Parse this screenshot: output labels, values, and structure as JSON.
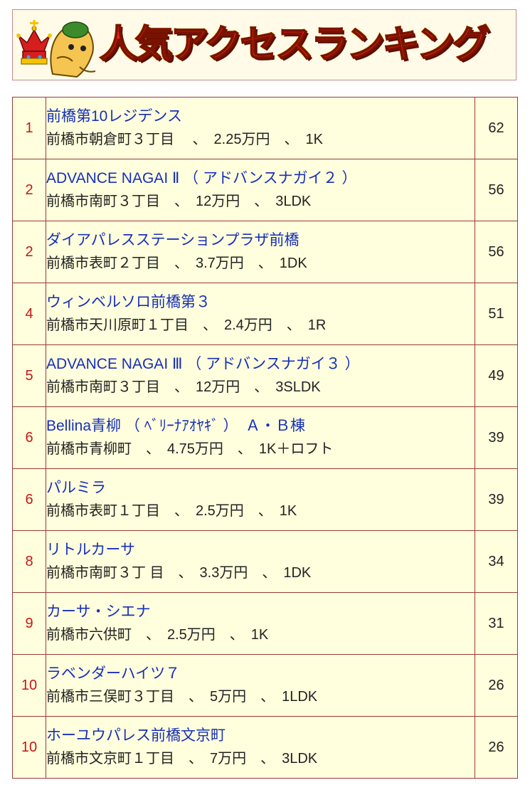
{
  "header": {
    "title": "人気アクセスランキング"
  },
  "colors": {
    "rank_number": "#c51616",
    "property_name": "#1730b8",
    "cell_background": "#ffffdd",
    "border": "#9a3a3a",
    "title_fill": "#e8261a"
  },
  "icons": {
    "mascot": "crowned-horse-mascot-icon"
  },
  "ranking": {
    "rows": [
      {
        "rank": "1",
        "name": "前橋第10レジデンス",
        "detail": "前橋市朝倉町３丁目　 、　2.25万円　、　1K",
        "count": "62"
      },
      {
        "rank": "2",
        "name": "ADVANCE NAGAI Ⅱ （ アドバンスナガイ２ ）",
        "detail": "前橋市南町３丁目　、　12万円　、　3LDK",
        "count": "56"
      },
      {
        "rank": "2",
        "name": "ダイアパレスステーションプラザ前橋",
        "detail": "前橋市表町２丁目　、　3.7万円　、　1DK",
        "count": "56"
      },
      {
        "rank": "4",
        "name": "ウィンベルソロ前橋第３",
        "detail": "前橋市天川原町１丁目　、　2.4万円　、　1R",
        "count": "51"
      },
      {
        "rank": "5",
        "name": "ADVANCE NAGAI Ⅲ （ アドバンスナガイ３ ）",
        "detail": "前橋市南町３丁目　、　12万円　、　3SLDK",
        "count": "49"
      },
      {
        "rank": "6",
        "name": "Bellina青柳 （ ﾍﾞﾘｰﾅｱｵﾔｷﾞ ）　Ａ・Ｂ棟",
        "detail": "前橋市青柳町　、　4.75万円　、　1K＋ロフト",
        "count": "39"
      },
      {
        "rank": "6",
        "name": "パルミラ",
        "detail": "前橋市表町１丁目　、　2.5万円　、　1K",
        "count": "39"
      },
      {
        "rank": "8",
        "name": "リトルカーサ",
        "detail": "前橋市南町３丁 目　、　3.3万円　、　1DK",
        "count": "34"
      },
      {
        "rank": "9",
        "name": "カーサ・シエナ",
        "detail": "前橋市六供町　、　2.5万円　、　1K",
        "count": "31"
      },
      {
        "rank": "10",
        "name": "ラベンダーハイツ７",
        "detail": "前橋市三俣町３丁目　、　5万円　、　1LDK",
        "count": "26"
      },
      {
        "rank": "10",
        "name": "ホーユウパレス前橋文京町",
        "detail": "前橋市文京町１丁目　、　7万円　、　3LDK",
        "count": "26"
      }
    ]
  }
}
